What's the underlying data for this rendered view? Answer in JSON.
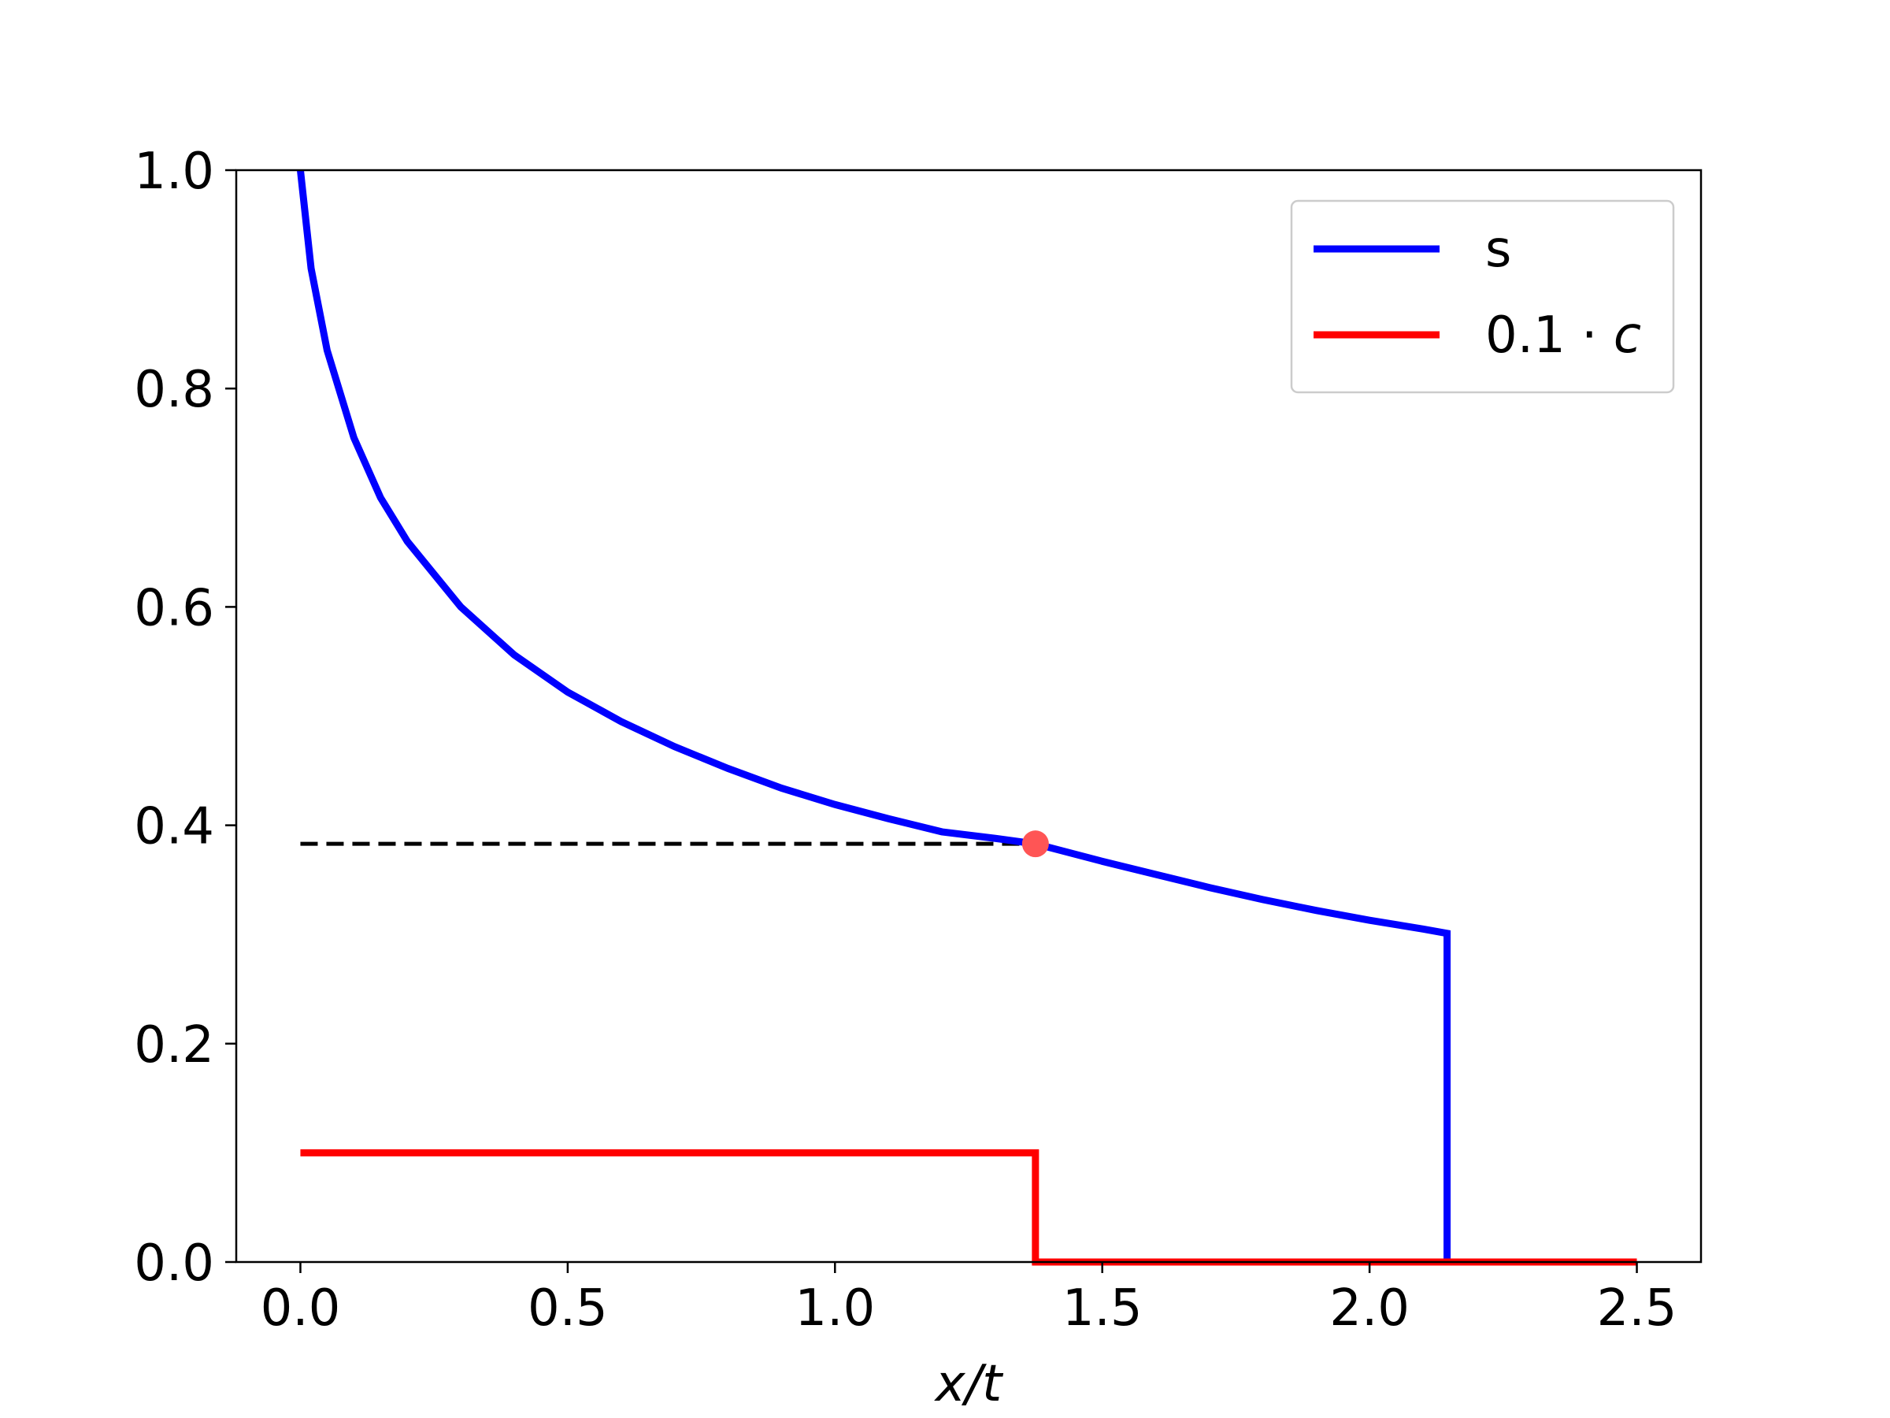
{
  "chart_data": {
    "type": "line",
    "title": "",
    "xlabel": "x/t",
    "ylabel": "",
    "xlim": [
      -0.12,
      2.62
    ],
    "ylim": [
      0.0,
      1.0
    ],
    "xticks": [
      0.0,
      0.5,
      1.0,
      1.5,
      2.0,
      2.5
    ],
    "xtick_labels": [
      "0.0",
      "0.5",
      "1.0",
      "1.5",
      "2.0",
      "2.5"
    ],
    "yticks": [
      0.0,
      0.2,
      0.4,
      0.6,
      0.8,
      1.0
    ],
    "ytick_labels": [
      "0.0",
      "0.2",
      "0.4",
      "0.6",
      "0.8",
      "1.0"
    ],
    "grid": false,
    "legend_position": "top-right",
    "series": [
      {
        "name": "s",
        "color": "#0000ff",
        "x": [
          0.0,
          0.02,
          0.05,
          0.1,
          0.15,
          0.2,
          0.3,
          0.4,
          0.5,
          0.6,
          0.7,
          0.8,
          0.9,
          1.0,
          1.1,
          1.2,
          1.3,
          1.375,
          1.5,
          1.6,
          1.7,
          1.8,
          1.9,
          2.0,
          2.1,
          2.145,
          2.145
        ],
        "y": [
          1.0,
          0.91,
          0.835,
          0.755,
          0.7,
          0.66,
          0.6,
          0.556,
          0.522,
          0.495,
          0.472,
          0.452,
          0.434,
          0.419,
          0.406,
          0.394,
          0.388,
          0.383,
          0.367,
          0.355,
          0.343,
          0.332,
          0.322,
          0.313,
          0.305,
          0.301,
          0.0
        ]
      },
      {
        "name": "0.1 · c",
        "color": "#ff0000",
        "x": [
          0.0,
          1.375,
          1.375,
          2.5
        ],
        "y": [
          0.1,
          0.1,
          0.0,
          0.0
        ]
      }
    ],
    "annotations": [
      {
        "type": "dashed-hline",
        "color": "#000000",
        "x": [
          0.0,
          1.375
        ],
        "y": 0.383
      },
      {
        "type": "point",
        "color": "#ff5555",
        "x": 1.375,
        "y": 0.383
      }
    ],
    "legend": [
      {
        "label": "s",
        "color": "#0000ff"
      },
      {
        "label_prefix": "0.1 · ",
        "label_var": "c",
        "color": "#ff0000"
      }
    ]
  }
}
